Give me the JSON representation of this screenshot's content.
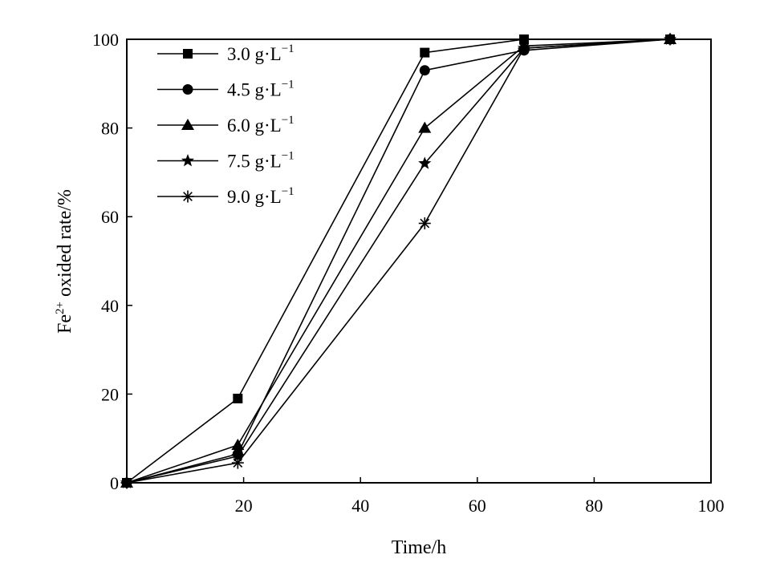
{
  "chart_data": {
    "type": "line",
    "title": "",
    "xlabel": "Time/h",
    "ylabel": "oxided rate/%",
    "ylabel_prefix": "Fe",
    "ylabel_superscript": "2+",
    "xlim": [
      0,
      100
    ],
    "ylim": [
      0,
      100
    ],
    "x_ticks": [
      20,
      40,
      60,
      80,
      100
    ],
    "y_ticks": [
      0,
      20,
      40,
      60,
      80,
      100
    ],
    "grid": false,
    "legend_position": "top-left",
    "x": [
      0,
      19,
      51,
      68,
      93
    ],
    "series": [
      {
        "name": "3.0 g·L",
        "unit_superscript": "−1",
        "marker": "square",
        "values": [
          0,
          19,
          97,
          100,
          100
        ]
      },
      {
        "name": "4.5 g·L",
        "unit_superscript": "−1",
        "marker": "circle",
        "values": [
          0,
          6.5,
          93,
          97.5,
          100
        ]
      },
      {
        "name": "6.0 g·L",
        "unit_superscript": "−1",
        "marker": "triangle",
        "values": [
          0,
          8.5,
          80,
          98.5,
          100
        ]
      },
      {
        "name": "7.5 g·L",
        "unit_superscript": "−1",
        "marker": "star",
        "values": [
          0,
          6,
          72,
          98,
          100
        ]
      },
      {
        "name": "9.0 g·L",
        "unit_superscript": "−1",
        "marker": "asterisk",
        "values": [
          0,
          4.5,
          58.5,
          98,
          100
        ]
      }
    ]
  }
}
